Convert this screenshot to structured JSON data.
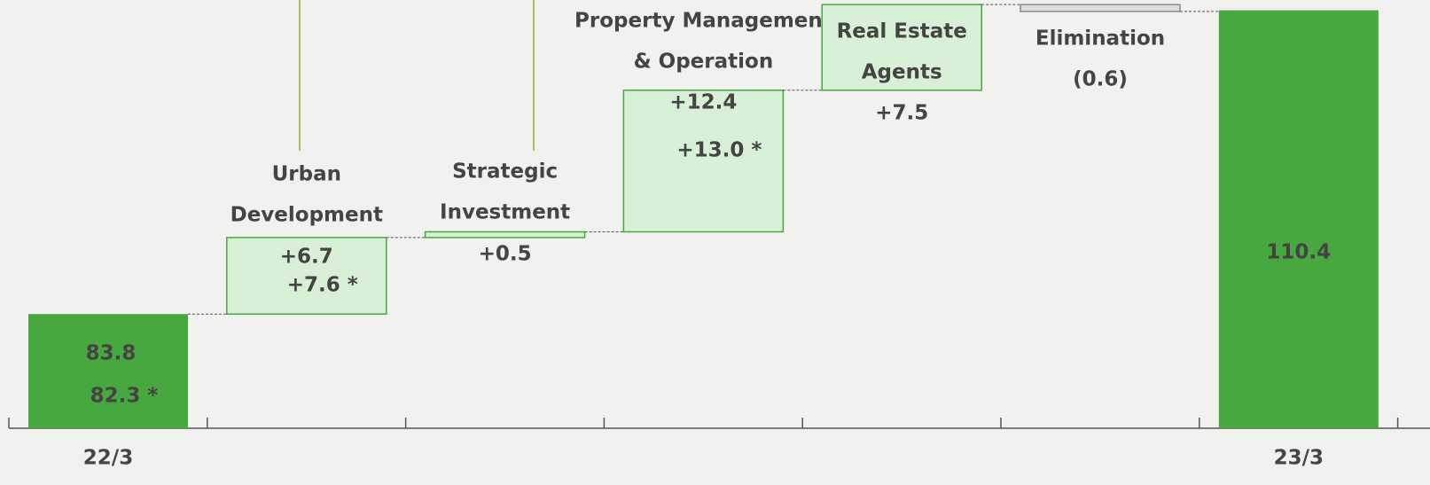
{
  "chart_data": {
    "type": "waterfall",
    "categories": [
      [
        "22/3"
      ],
      [
        "Urban",
        "Development"
      ],
      [
        "Strategic",
        "Investment"
      ],
      [
        "Property Management",
        "& Operation"
      ],
      [
        "Real Estate",
        "Agents"
      ],
      [
        "Elimination"
      ],
      [
        "23/3"
      ]
    ],
    "values": [
      83.8,
      6.7,
      0.5,
      12.4,
      7.5,
      -0.6,
      110.4
    ],
    "value_labels": [
      "83.8",
      "+6.7",
      "+0.5",
      "+12.4",
      "+7.5",
      "(0.6)",
      "110.4"
    ],
    "secondary_labels": [
      "82.3 *",
      "+7.6 *",
      null,
      "+13.0 *",
      null,
      null,
      null
    ],
    "measure": [
      "absolute",
      "relative",
      "relative",
      "relative",
      "relative",
      "relative",
      "total"
    ],
    "color": "#46a83e",
    "increase_color": "#d8f0d6",
    "decrease_color": "#e0e0e0",
    "ylim": [
      73.8,
      111.3
    ]
  }
}
